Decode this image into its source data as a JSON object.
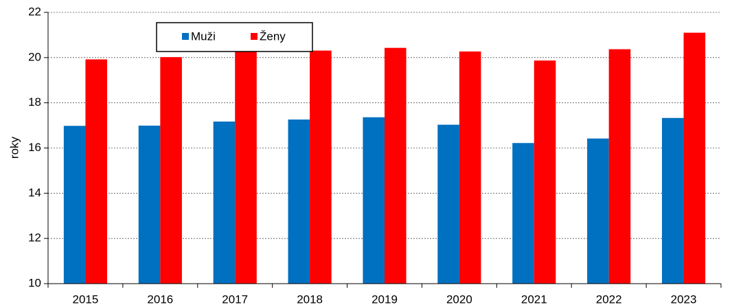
{
  "chart_data": {
    "type": "bar",
    "y_label": "roky",
    "categories": [
      "2015",
      "2016",
      "2017",
      "2018",
      "2019",
      "2020",
      "2021",
      "2022",
      "2023"
    ],
    "series": [
      {
        "name": "Muži",
        "color": "#0070c0",
        "values": [
          16.98,
          16.99,
          17.17,
          17.26,
          17.36,
          17.03,
          16.22,
          16.42,
          17.33
        ]
      },
      {
        "name": "Ženy",
        "color": "#ff0000",
        "values": [
          19.92,
          20.02,
          20.27,
          20.31,
          20.43,
          20.27,
          19.87,
          20.37,
          21.1
        ]
      }
    ],
    "ylim": [
      10,
      22
    ],
    "yticks": [
      10,
      12,
      14,
      16,
      18,
      20,
      22
    ],
    "grid": true
  }
}
